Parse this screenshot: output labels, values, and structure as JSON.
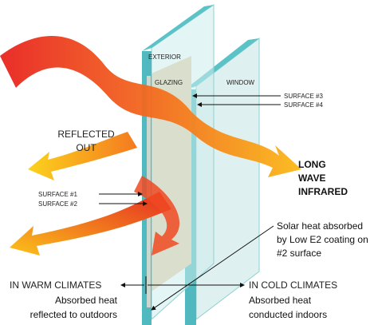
{
  "labels": {
    "exterior": "EXTERIOR",
    "glazing": "GLAZING",
    "window": "WINDOW",
    "surface_3": "SURFACE #3",
    "surface_4": "SURFACE #4",
    "surface_1": "SURFACE #1",
    "surface_2": "SURFACE #2"
  },
  "reflected_out": [
    "REFLECTED",
    "OUT"
  ],
  "long_wave_infrared": [
    "LONG",
    "WAVE",
    "INFRARED"
  ],
  "solar_heat": [
    "Solar heat absorbed",
    "by Low E2 coating on",
    "#2 surface"
  ],
  "warm": {
    "title": "IN WARM CLIMATES",
    "lines": [
      "Absorbed heat",
      "reflected to outdoors"
    ]
  },
  "cold": {
    "title": "IN COLD CLIMATES",
    "lines": [
      "Absorbed heat",
      "conducted indoors"
    ]
  }
}
